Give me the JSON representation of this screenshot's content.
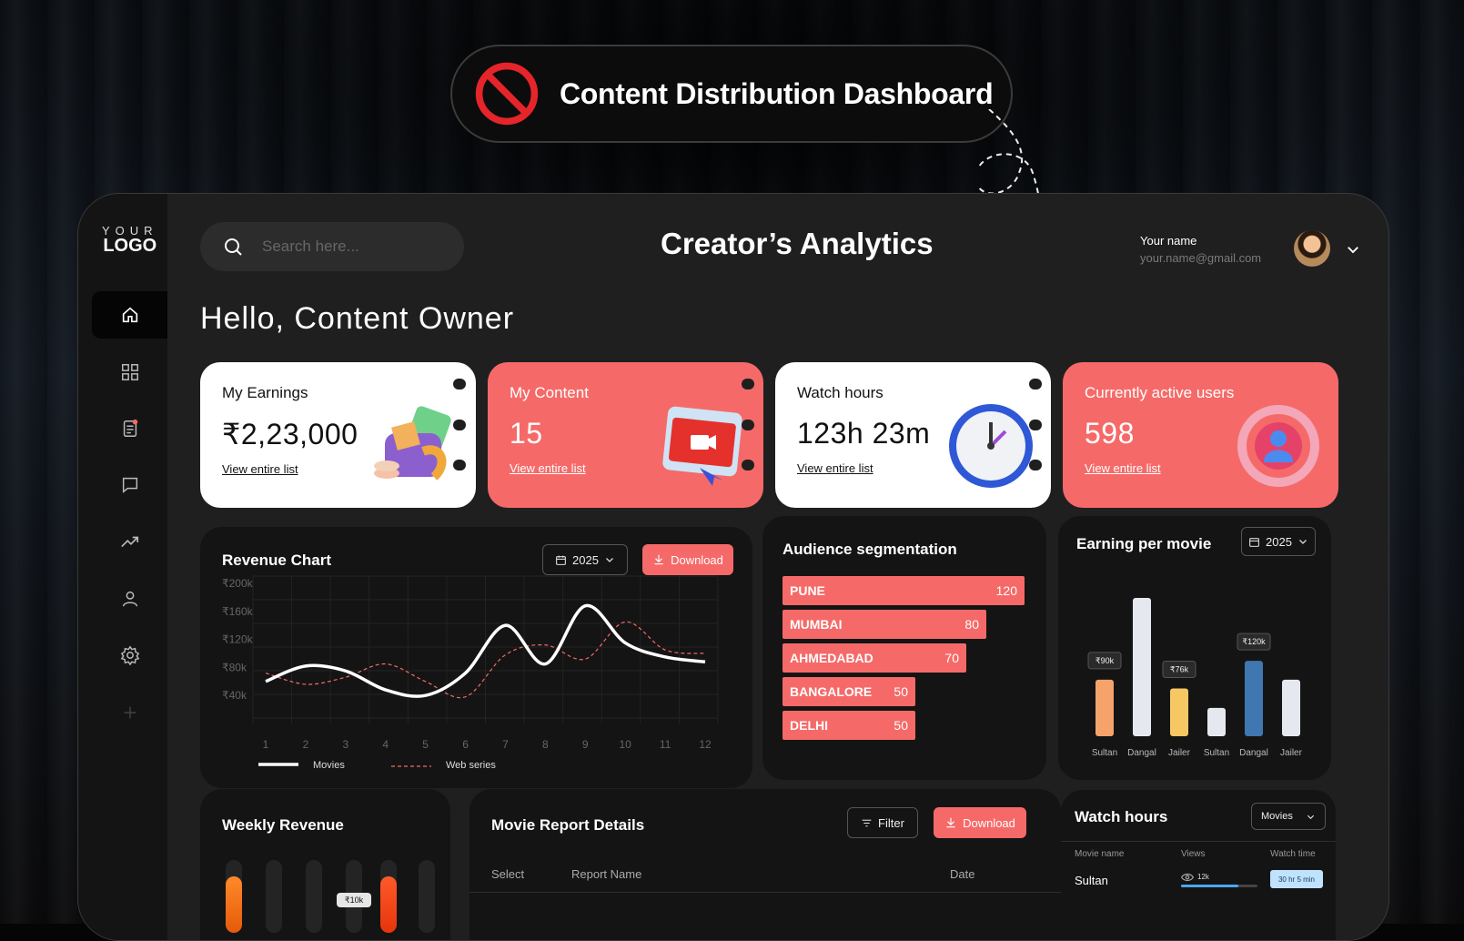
{
  "banner": {
    "title": "Content Distribution Dashboard",
    "icon": "prohibited-icon"
  },
  "logo": {
    "line1": "YOUR",
    "line2": "LOGO"
  },
  "sidebar": {
    "items": [
      {
        "name": "home-icon",
        "active": true
      },
      {
        "name": "grid-icon"
      },
      {
        "name": "report-icon"
      },
      {
        "name": "chat-icon"
      },
      {
        "name": "trending-icon"
      },
      {
        "name": "user-icon"
      },
      {
        "name": "settings-icon"
      },
      {
        "name": "add-icon"
      }
    ]
  },
  "header": {
    "search_placeholder": "Search here...",
    "title": "Creator’s Analytics",
    "user_name": "Your name",
    "user_email": "your.name@gmail.com"
  },
  "greeting": "Hello, Content Owner",
  "stats": [
    {
      "title": "My Earnings",
      "value": "₹2,23,000",
      "link": "View entire list"
    },
    {
      "title": "My Content",
      "value": "15",
      "link": "View entire list"
    },
    {
      "title": "Watch hours",
      "value": "123h 23m",
      "link": "View entire list"
    },
    {
      "title": "Currently active users",
      "value": "598",
      "link": "View entire list"
    }
  ],
  "revenue": {
    "title": "Revenue Chart",
    "year": "2025",
    "download": "Download",
    "legend_movies": "Movies",
    "legend_web": "Web series"
  },
  "audience": {
    "title": "Audience segmentation",
    "rows": [
      {
        "city": "PUNE",
        "value": "120"
      },
      {
        "city": "MUMBAI",
        "value": "80"
      },
      {
        "city": "AHMEDABAD",
        "value": "70"
      },
      {
        "city": "BANGALORE",
        "value": "50"
      },
      {
        "city": "DELHI",
        "value": "50"
      }
    ]
  },
  "epm": {
    "title": "Earning per movie",
    "year": "2025"
  },
  "weekly": {
    "title": "Weekly Revenue",
    "badge": "₹10k"
  },
  "report": {
    "title": "Movie Report Details",
    "filter": "Filter",
    "download": "Download",
    "col_select": "Select",
    "col_name": "Report Name",
    "col_date": "Date"
  },
  "watch": {
    "title": "Watch hours",
    "select": "Movies",
    "col_movie": "Movie name",
    "col_views": "Views",
    "col_time": "Watch time",
    "row_movie": "Sultan",
    "row_views": "12k",
    "row_progress": 0.75,
    "row_time": "30 hr 5 min"
  },
  "chart_data": [
    {
      "type": "line",
      "title": "Revenue Chart",
      "x": [
        1,
        2,
        3,
        4,
        5,
        6,
        7,
        8,
        9,
        10,
        11,
        12
      ],
      "ytick_labels": [
        "₹200k",
        "₹160k",
        "₹120k",
        "₹80k",
        "₹40k"
      ],
      "ylim": [
        0,
        200
      ],
      "series": [
        {
          "name": "Movies",
          "values": [
            60,
            82,
            75,
            48,
            40,
            72,
            140,
            85,
            168,
            115,
            95,
            88
          ]
        },
        {
          "name": "Web series",
          "values": [
            72,
            56,
            66,
            85,
            60,
            38,
            98,
            112,
            92,
            145,
            105,
            100
          ]
        }
      ],
      "legend": "bottom-left",
      "grid": true
    },
    {
      "type": "bar",
      "title": "Earning per movie",
      "categories": [
        "Sultan",
        "Dangal",
        "Jailer",
        "Sultan",
        "Dangal",
        "Jailer"
      ],
      "values": [
        90,
        220,
        76,
        45,
        120,
        90
      ],
      "data_labels": [
        "₹90k",
        "",
        "₹76k",
        "",
        "₹120k",
        ""
      ],
      "colors": [
        "#f5a36b",
        "#e6e8ef",
        "#f5c863",
        "#e6e8ef",
        "#3f77b0",
        "#e6e8ef"
      ]
    }
  ]
}
